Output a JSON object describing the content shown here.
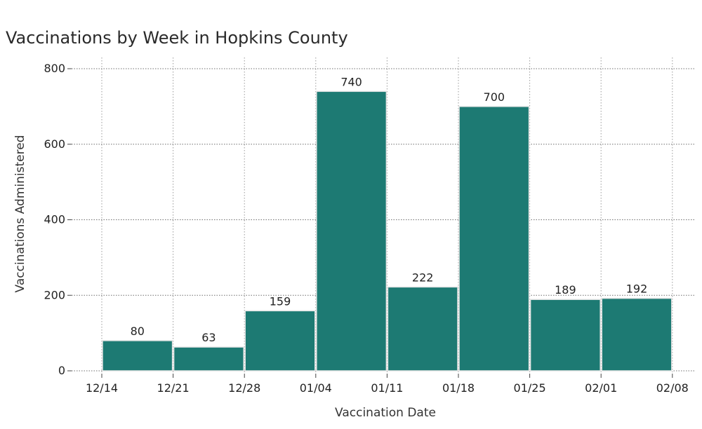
{
  "chart_data": {
    "type": "bar",
    "title": "Vaccinations by Week in Hopkins County",
    "xlabel": "Vaccination Date",
    "ylabel": "Vaccinations Administered",
    "x_tick_labels": [
      "12/14",
      "12/21",
      "12/28",
      "01/04",
      "01/11",
      "01/18",
      "01/25",
      "02/01",
      "02/08"
    ],
    "categories": [
      "12/14",
      "12/21",
      "12/28",
      "01/04",
      "01/11",
      "01/18",
      "01/25",
      "02/01"
    ],
    "values": [
      80,
      63,
      159,
      740,
      222,
      700,
      189,
      192
    ],
    "y_ticks": [
      0,
      200,
      400,
      600,
      800
    ],
    "ylim": [
      0,
      800
    ],
    "grid": true,
    "grid_style": "dotted",
    "bar_color": "#1d7a73",
    "bar_edge_color": "#e6e6e6",
    "data_labels": true,
    "legend": "none"
  }
}
